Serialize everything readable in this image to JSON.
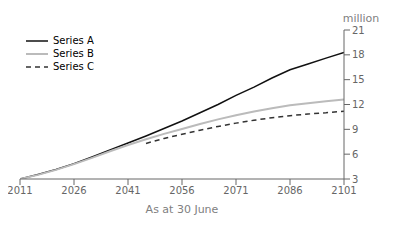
{
  "chart_data": {
    "type": "line",
    "xlabel": "As at 30 June",
    "ylabel": "million",
    "x": [
      2011,
      2016,
      2021,
      2026,
      2031,
      2036,
      2041,
      2046,
      2051,
      2056,
      2061,
      2066,
      2071,
      2076,
      2081,
      2086,
      2091,
      2096,
      2101
    ],
    "series": [
      {
        "name": "Series A",
        "color": "#111111",
        "line_style": "solid",
        "values": [
          3.0,
          3.55,
          4.15,
          4.85,
          5.65,
          6.5,
          7.35,
          8.2,
          9.1,
          10.0,
          11.0,
          12.0,
          13.1,
          14.1,
          15.2,
          16.2,
          16.9,
          17.6,
          18.3
        ]
      },
      {
        "name": "Series B",
        "color": "#bbbbbb",
        "line_style": "solid",
        "values": [
          3.0,
          3.5,
          4.1,
          4.8,
          5.55,
          6.35,
          7.1,
          7.8,
          8.45,
          9.05,
          9.65,
          10.2,
          10.7,
          11.15,
          11.55,
          11.9,
          12.15,
          12.4,
          12.6
        ]
      },
      {
        "name": "Series C",
        "color": "#333333",
        "line_style": "dashed",
        "values": [
          null,
          null,
          null,
          null,
          null,
          null,
          null,
          7.3,
          7.9,
          8.4,
          8.9,
          9.35,
          9.75,
          10.1,
          10.4,
          10.65,
          10.85,
          11.0,
          11.2
        ]
      }
    ],
    "xlim": [
      2011,
      2101
    ],
    "ylim": [
      3,
      21
    ],
    "xticks": [
      2011,
      2026,
      2041,
      2056,
      2071,
      2086,
      2101
    ],
    "yticks": [
      3,
      6,
      9,
      12,
      15,
      18,
      21
    ],
    "legend": "upper left",
    "grid": false
  }
}
